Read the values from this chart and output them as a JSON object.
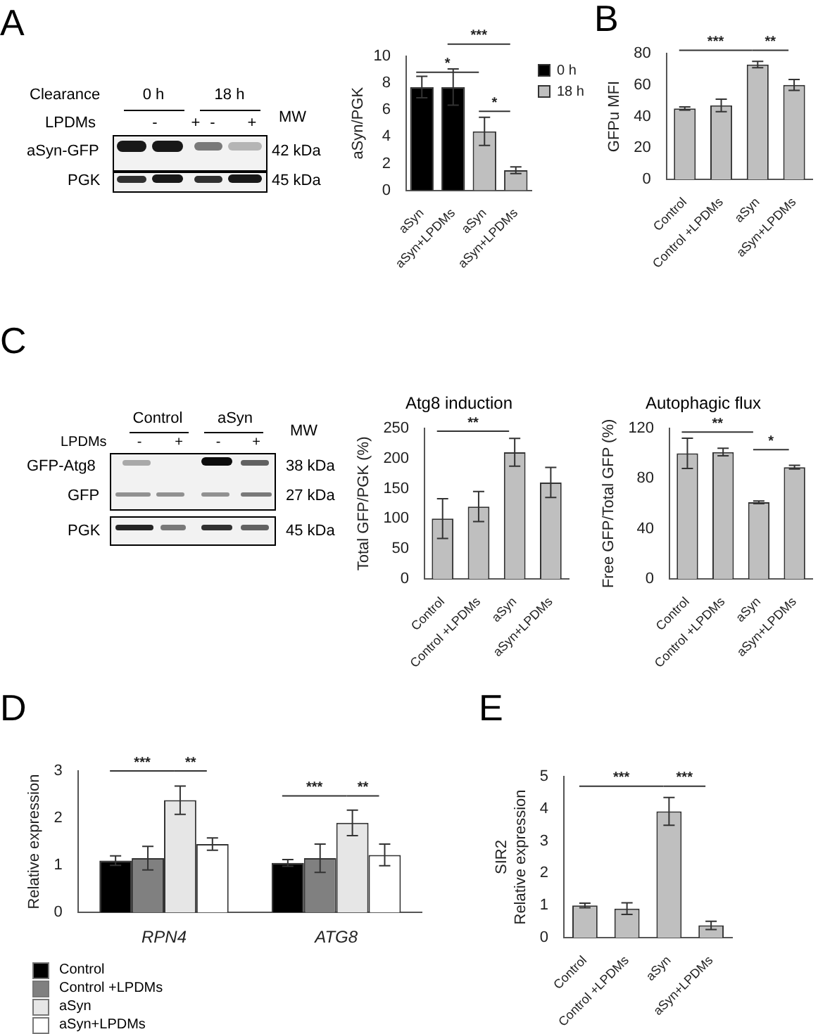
{
  "chart_data": [
    {
      "type": "other",
      "annotations": [
        "A",
        "Clearance",
        "0 h",
        "18 h",
        "LPDMs",
        "-",
        "+",
        "-",
        "+",
        "MW",
        "aSyn-GFP",
        "42 kDa",
        "PGK",
        "45 kDa"
      ]
    },
    {
      "type": "bar",
      "categories": [
        "aSyn",
        "aSyn+LPDMs",
        "aSyn",
        "aSyn+LPDMs"
      ],
      "ylabel": "aSyn/PGK",
      "ylim": [
        0,
        10
      ],
      "yticks": [
        0,
        2,
        4,
        6,
        8,
        10
      ],
      "legend": "top right",
      "series": [
        {
          "name": "0 h",
          "color": "#000000",
          "values": [
            7.7,
            7.7,
            null,
            null
          ],
          "errors": [
            0.8,
            1.35,
            null,
            null
          ]
        },
        {
          "name": "18 h",
          "color": "#bfbfbf",
          "values": [
            null,
            null,
            4.4,
            1.5
          ],
          "errors": [
            null,
            null,
            1.05,
            0.25
          ]
        }
      ],
      "annotations": [
        "*",
        "***",
        "*"
      ]
    },
    {
      "type": "bar",
      "categories": [
        "Control",
        "Control +LPDMs",
        "aSyn",
        "aSyn+LPDMs"
      ],
      "ylabel": "GFPu MFI",
      "ylim": [
        0,
        80
      ],
      "yticks": [
        0,
        20,
        40,
        60,
        80
      ],
      "color": "#bfbfbf",
      "values": [
        45,
        47,
        73,
        60
      ],
      "errors": [
        1,
        4,
        2,
        3.5
      ],
      "annotations": [
        "B",
        "***",
        "**"
      ]
    },
    {
      "type": "other",
      "annotations": [
        "C",
        "Control",
        "aSyn",
        "LPDMs",
        "-",
        "+",
        "-",
        "+",
        "MW",
        "GFP-Atg8",
        "38 kDa",
        "GFP",
        "27 kDa",
        "PGK",
        "45 kDa"
      ]
    },
    {
      "type": "bar",
      "title": "Atg8 induction",
      "categories": [
        "Control",
        "Control +LPDMs",
        "aSyn",
        "aSyn+LPDMs"
      ],
      "ylabel": "Total GFP/PGK (%)",
      "ylim": [
        0,
        250
      ],
      "yticks": [
        0,
        50,
        100,
        150,
        200,
        250
      ],
      "color": "#bfbfbf",
      "values": [
        100,
        120,
        210,
        160
      ],
      "errors": [
        33,
        25,
        23,
        25
      ],
      "annotations": [
        "**"
      ]
    },
    {
      "type": "bar",
      "title": "Autophagic flux",
      "categories": [
        "Control",
        "Control +LPDMs",
        "aSyn",
        "aSyn+LPDMs"
      ],
      "ylabel": "Free GFP/Total GFP (%)",
      "ylim": [
        0,
        120
      ],
      "yticks": [
        0,
        40,
        80,
        120
      ],
      "color": "#bfbfbf",
      "values": [
        100,
        101,
        61,
        89
      ],
      "errors": [
        12,
        3,
        1,
        1.5
      ],
      "annotations": [
        "**",
        "*"
      ]
    },
    {
      "type": "bar",
      "categories": [
        "RPN4",
        "ATG8"
      ],
      "ylabel": "Relative expression",
      "ylim": [
        0,
        3
      ],
      "yticks": [
        0,
        1,
        2,
        3
      ],
      "legend": "bottom left",
      "series": [
        {
          "name": "Control",
          "color": "#000000",
          "values": [
            1.1,
            1.05
          ],
          "errors": [
            0.1,
            0.07
          ]
        },
        {
          "name": "Control +LPDMs",
          "color": "#808080",
          "values": [
            1.15,
            1.15
          ],
          "errors": [
            0.25,
            0.3
          ]
        },
        {
          "name": "aSyn",
          "color": "#e6e6e6",
          "values": [
            2.38,
            1.9
          ],
          "errors": [
            0.3,
            0.27
          ]
        },
        {
          "name": "aSyn+LPDMs",
          "color": "#ffffff",
          "values": [
            1.45,
            1.22
          ],
          "errors": [
            0.13,
            0.23
          ]
        }
      ],
      "annotations": [
        "D",
        "***",
        "***",
        "**",
        "**"
      ]
    },
    {
      "type": "bar",
      "categories": [
        "Control",
        "Control +LPDMs",
        "aSyn",
        "aSyn+LPDMs"
      ],
      "ylabel": "SIR2\nRelative expression",
      "ylim": [
        0,
        5
      ],
      "yticks": [
        0,
        1,
        2,
        3,
        4,
        5
      ],
      "color": "#bfbfbf",
      "values": [
        1,
        0.9,
        3.92,
        0.38
      ],
      "errors": [
        0.07,
        0.18,
        0.43,
        0.13
      ],
      "annotations": [
        "E",
        "***",
        "***"
      ]
    }
  ]
}
